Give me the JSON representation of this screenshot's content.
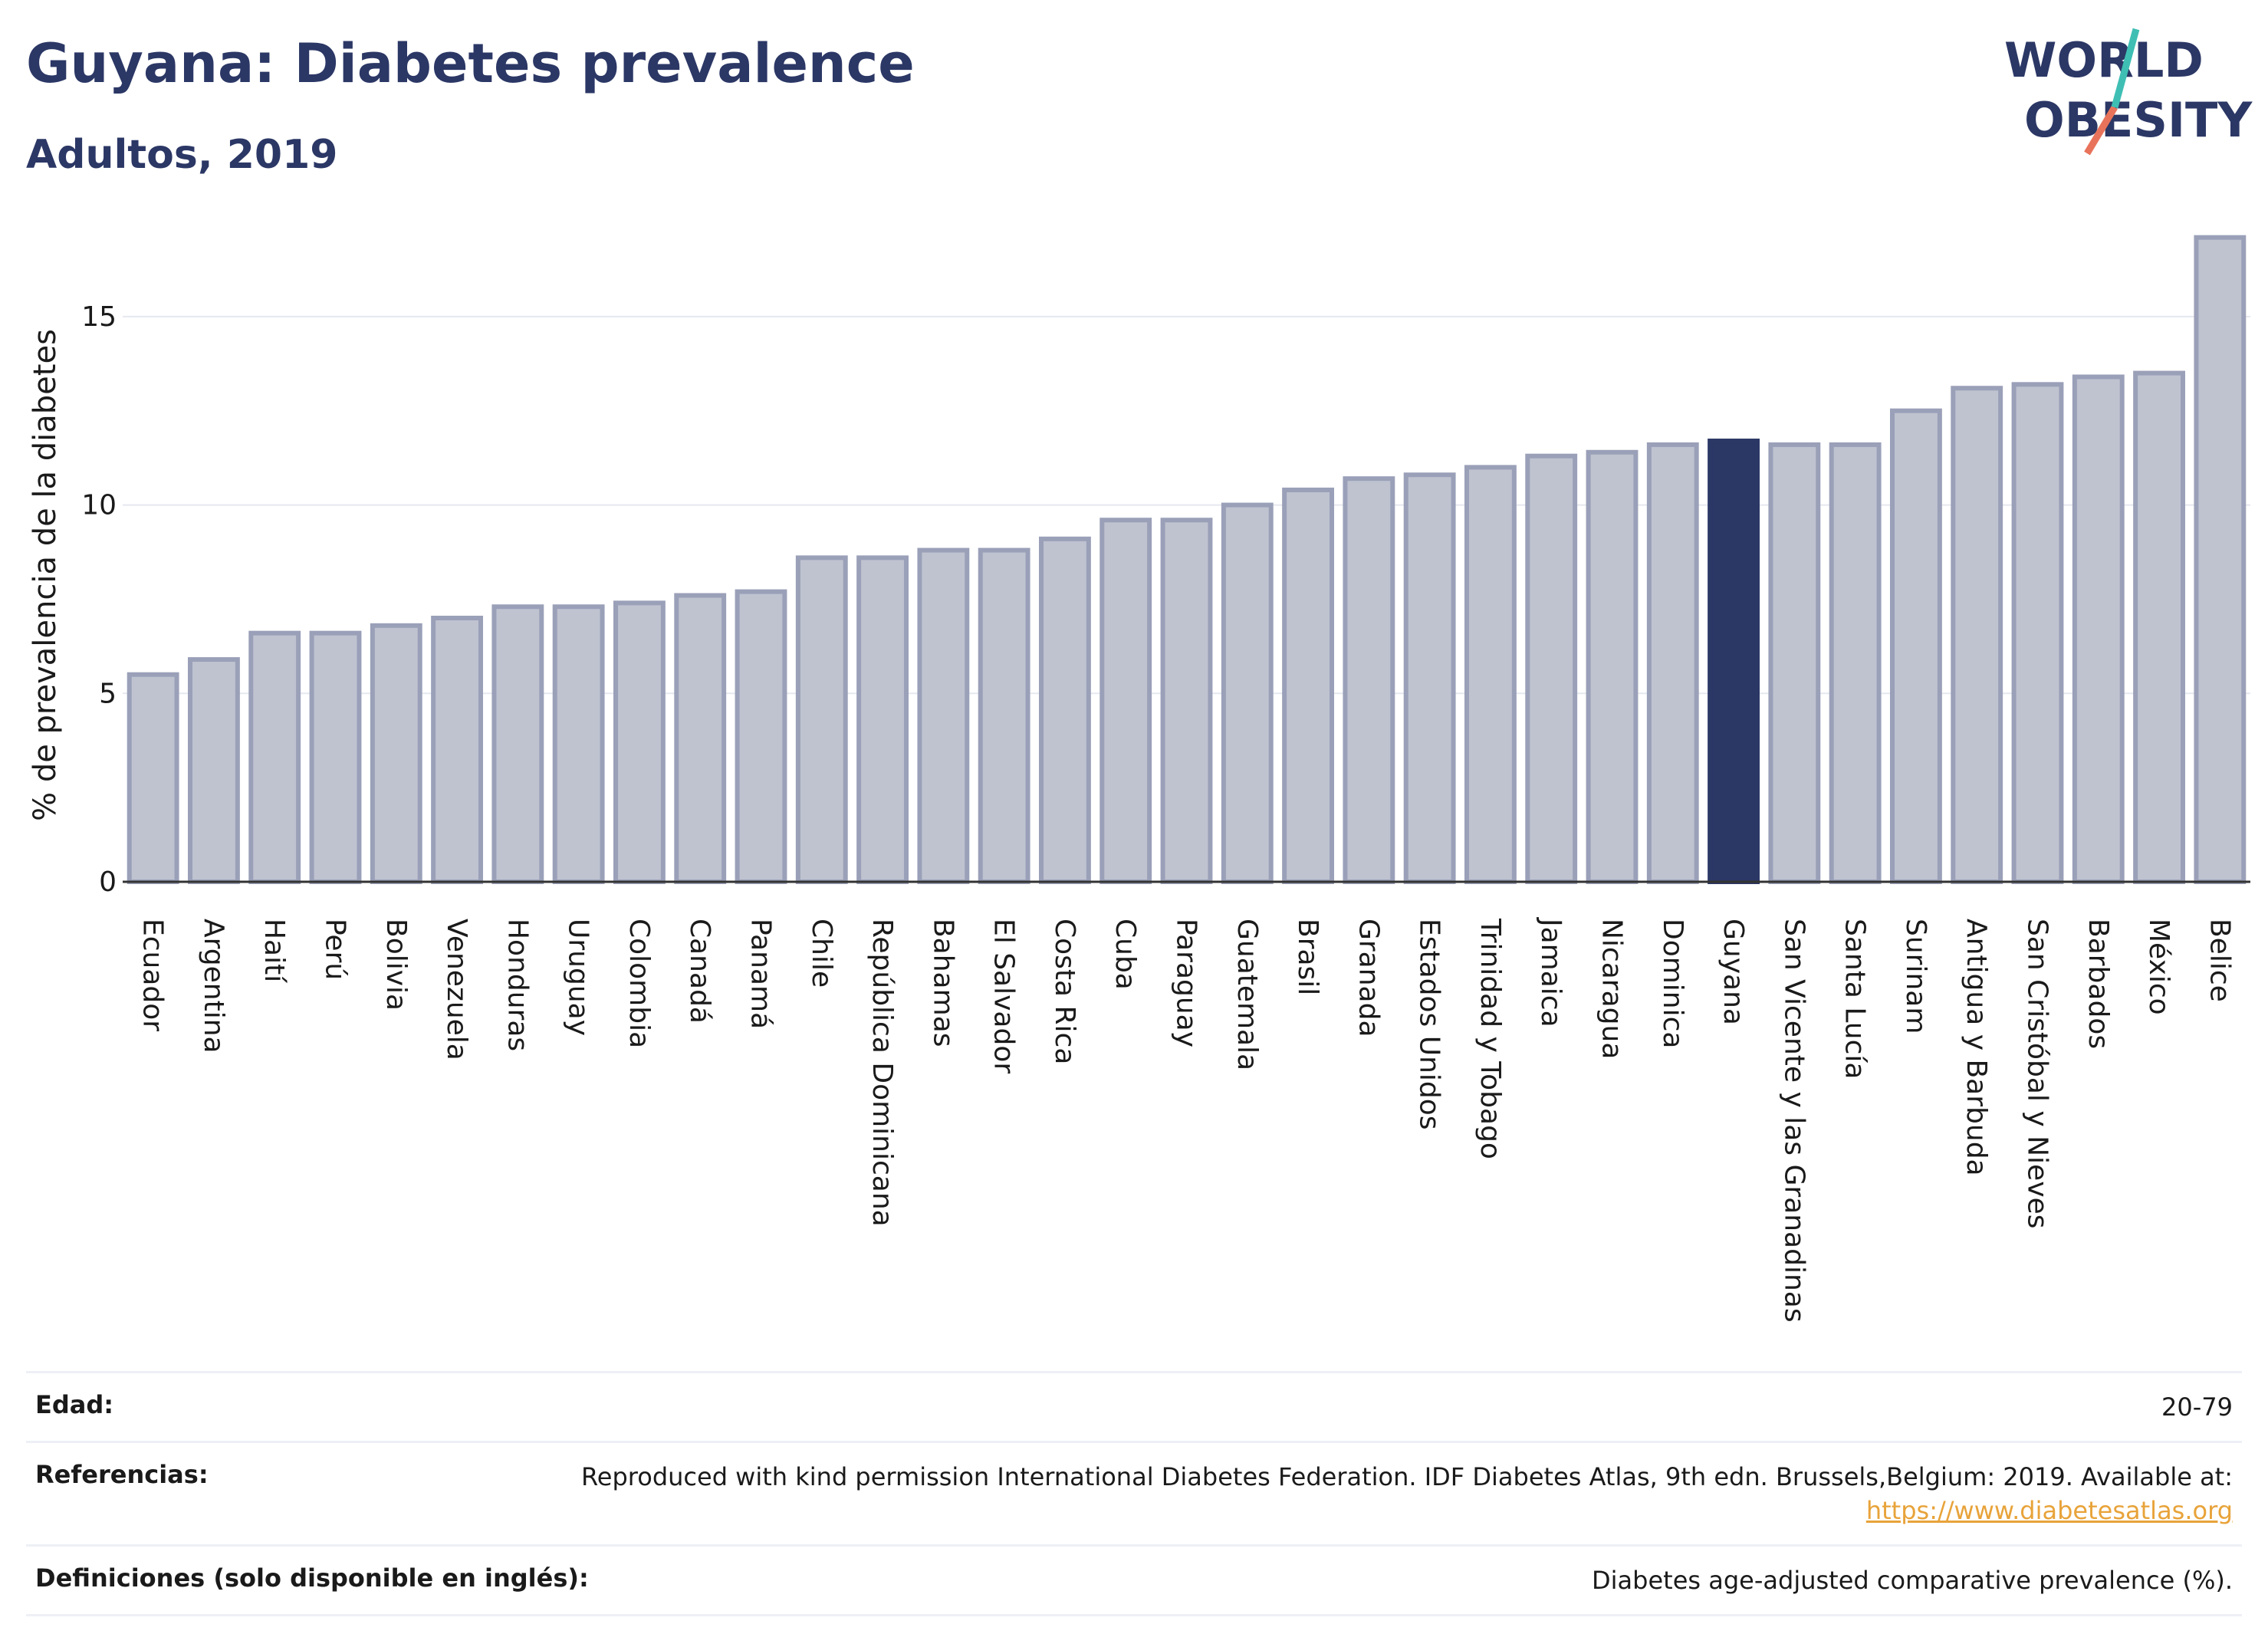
{
  "header": {
    "title": "Guyana: Diabetes prevalence",
    "subtitle": "Adultos, 2019"
  },
  "logo": {
    "line1": "WORLD",
    "line2": "OBESITY"
  },
  "colors": {
    "highlight_bar": "#2b3765",
    "bar": "#bfc3d0",
    "bar_border": "#9aa0b8",
    "title": "#2b3765",
    "logo_slash_orange": "#e8735a",
    "logo_slash_teal": "#3fbfb4"
  },
  "chart_data": {
    "type": "bar",
    "ylabel": "% de prevalencia de la diabetes",
    "ylim": [
      0,
      17.5
    ],
    "yticks": [
      0,
      5,
      10,
      15
    ],
    "grid": true,
    "highlight": "Guyana",
    "categories": [
      "Ecuador",
      "Argentina",
      "Haití",
      "Perú",
      "Bolivia",
      "Venezuela",
      "Honduras",
      "Uruguay",
      "Colombia",
      "Canadá",
      "Panamá",
      "Chile",
      "República Dominicana",
      "Bahamas",
      "El Salvador",
      "Costa Rica",
      "Cuba",
      "Paraguay",
      "Guatemala",
      "Brasil",
      "Granada",
      "Estados Unidos",
      "Trinidad y Tobago",
      "Jamaica",
      "Nicaragua",
      "Dominica",
      "Guyana",
      "San Vicente y las Granadinas",
      "Santa Lucía",
      "Surinam",
      "Antigua y Barbuda",
      "San Cristóbal y Nieves",
      "Barbados",
      "México",
      "Belice"
    ],
    "values": [
      5.5,
      5.9,
      6.6,
      6.6,
      6.8,
      7.0,
      7.3,
      7.3,
      7.4,
      7.6,
      7.7,
      8.6,
      8.6,
      8.8,
      8.8,
      9.1,
      9.6,
      9.6,
      10.0,
      10.4,
      10.7,
      10.8,
      11.0,
      11.3,
      11.4,
      11.6,
      11.7,
      11.6,
      11.6,
      12.5,
      13.1,
      13.2,
      13.4,
      13.5,
      17.1
    ]
  },
  "info": {
    "age_label": "Edad:",
    "age_value": "20-79",
    "ref_label": "Referencias:",
    "ref_value": "Reproduced with kind permission International Diabetes Federation. IDF Diabetes Atlas, 9th edn. Brussels,Belgium: 2019. Available at:",
    "ref_link": "https://www.diabetesatlas.org",
    "def_label": "Definiciones (solo disponible en inglés):",
    "def_value": "Diabetes age-adjusted comparative prevalence (%)."
  }
}
